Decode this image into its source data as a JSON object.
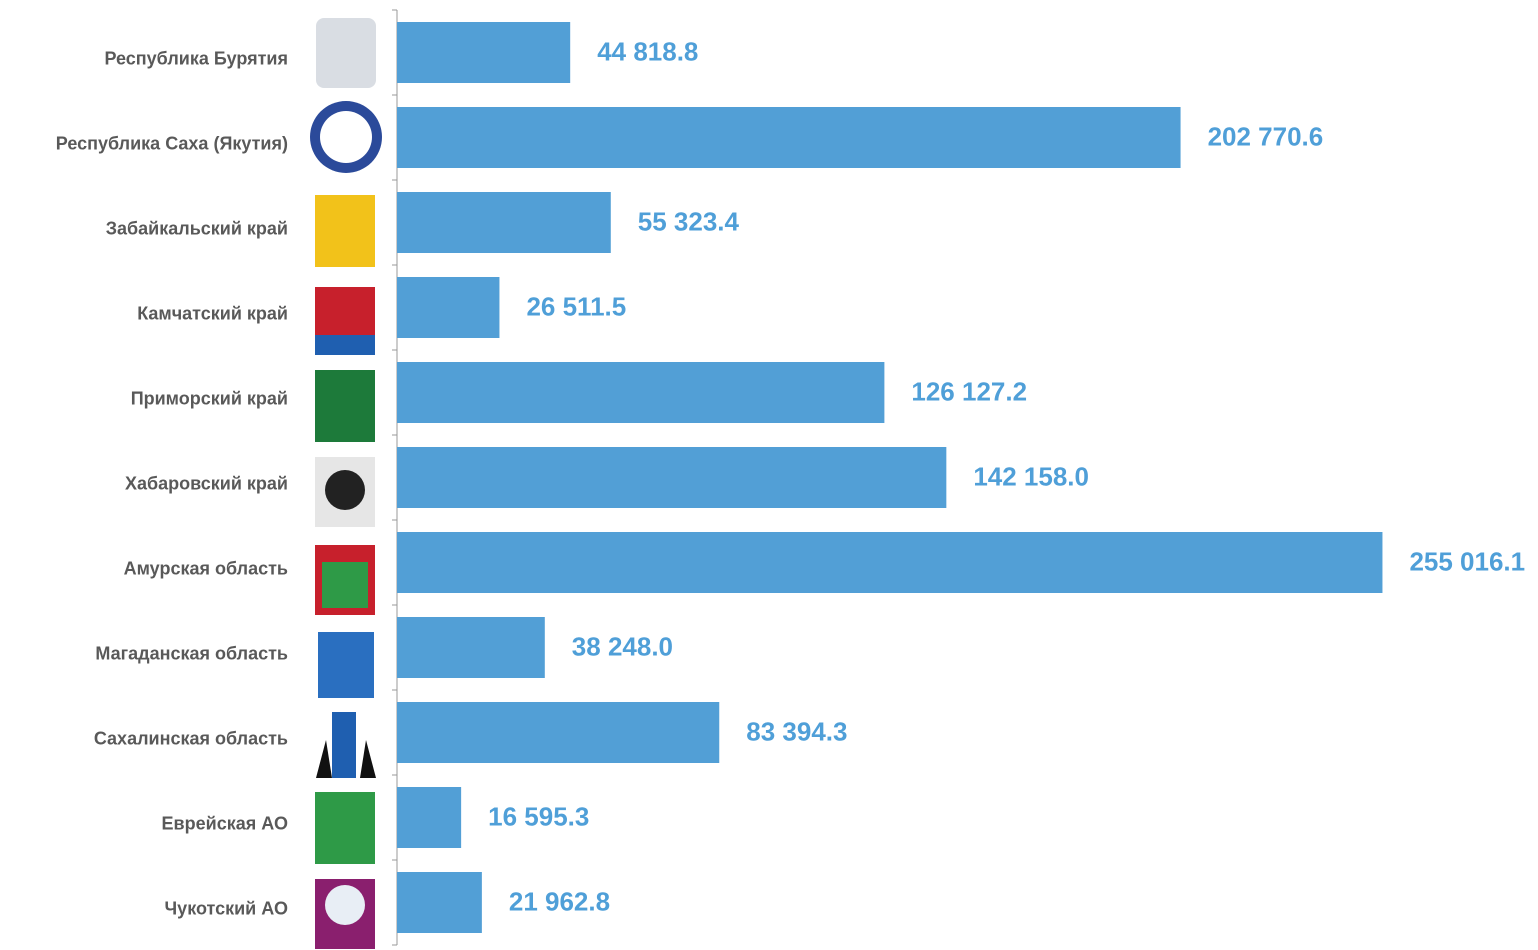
{
  "chart_data": {
    "type": "bar",
    "orientation": "horizontal",
    "categories": [
      "Республика Бурятия",
      "Республика Саха (Якутия)",
      "Забайкальский край",
      "Камчатский край",
      "Приморский край",
      "Хабаровский край",
      "Амурская область",
      "Магаданская область",
      "Сахалинская область",
      "Еврейская АО",
      "Чукотский АО"
    ],
    "values": [
      44818.8,
      202770.6,
      55323.4,
      26511.5,
      126127.2,
      142158.0,
      255016.1,
      38248.0,
      83394.3,
      16595.3,
      21962.8
    ],
    "value_labels": [
      "44 818.8",
      "202 770.6",
      "55 323.4",
      "26 511.5",
      "126 127.2",
      "142 158.0",
      "255 016.1",
      "38 248.0",
      "83 394.3",
      "16 595.3",
      "21 962.8"
    ],
    "color": "#529fd6",
    "xlim": [
      0,
      280000
    ]
  }
}
